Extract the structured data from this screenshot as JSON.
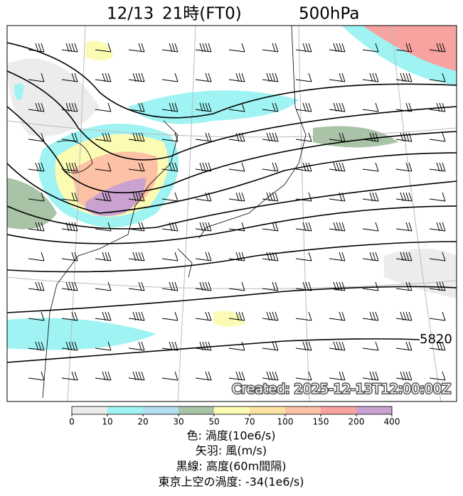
{
  "title": [
    "12/13",
    "21時(FT0)",
    "500hPa"
  ],
  "contour_label": "5820",
  "stamp": "Created: 2025-12-13T12:00:00Z",
  "colorbar": {
    "ticks": [
      0,
      10,
      20,
      30,
      50,
      70,
      100,
      150,
      200,
      400
    ],
    "colors": [
      "#ececec",
      "#9ff3f3",
      "#b2dff2",
      "#a9c3a6",
      "#fcfbb4",
      "#fde3a3",
      "#fdc1a6",
      "#f7a3a0",
      "#c9a2cf"
    ]
  },
  "legend": [
    "色: 渦度(10e6/s)",
    "矢羽: 風(m/s)",
    "黒線: 高度(60m間隔)",
    "東京上空の渦度: -34(1e6/s)"
  ]
}
